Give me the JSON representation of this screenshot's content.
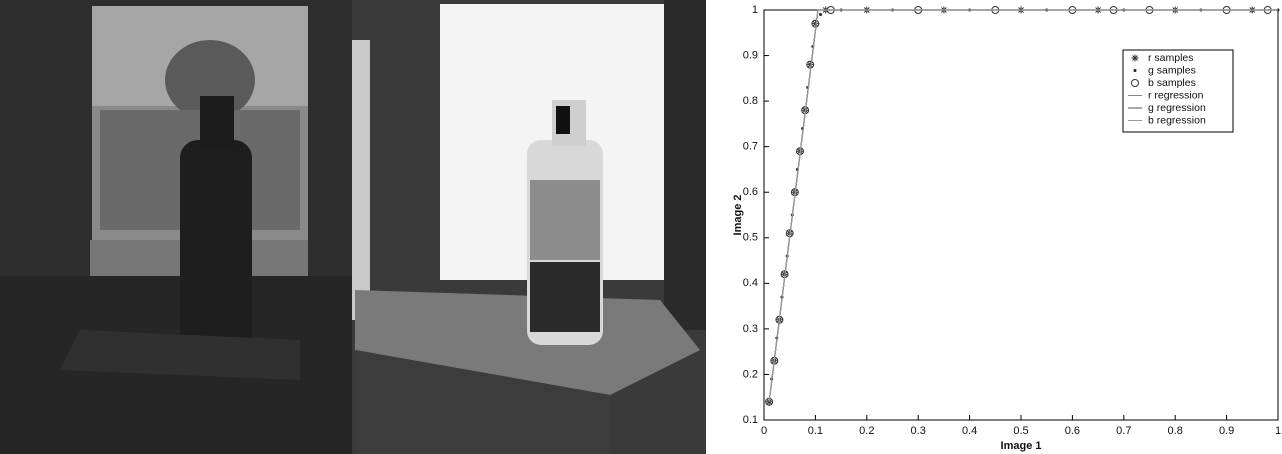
{
  "chart_data": {
    "type": "scatter",
    "xlabel": "Image 1",
    "ylabel": "Image 2",
    "xlim": [
      0,
      1
    ],
    "ylim": [
      0.1,
      1
    ],
    "xticks": [
      0,
      0.1,
      0.2,
      0.3,
      0.4,
      0.5,
      0.6,
      0.7,
      0.8,
      0.9,
      1
    ],
    "yticks": [
      0.1,
      0.2,
      0.3,
      0.4,
      0.5,
      0.6,
      0.7,
      0.8,
      0.9,
      1
    ],
    "legend": "upper right",
    "series": [
      {
        "name": "r samples",
        "marker": "asterisk",
        "color": "#333333",
        "x": [
          0.01,
          0.02,
          0.03,
          0.04,
          0.05,
          0.06,
          0.07,
          0.08,
          0.09,
          0.1,
          0.12,
          0.2,
          0.35,
          0.5,
          0.65,
          0.8,
          0.95
        ],
        "values": [
          0.14,
          0.23,
          0.32,
          0.42,
          0.51,
          0.6,
          0.69,
          0.78,
          0.88,
          0.97,
          1,
          1,
          1,
          1,
          1,
          1,
          1
        ]
      },
      {
        "name": "g samples",
        "marker": "dot",
        "color": "#222222",
        "x": [
          0.015,
          0.025,
          0.035,
          0.045,
          0.055,
          0.065,
          0.075,
          0.085,
          0.095,
          0.11,
          0.15,
          0.25,
          0.4,
          0.55,
          0.7,
          0.85,
          1
        ],
        "values": [
          0.19,
          0.28,
          0.37,
          0.46,
          0.55,
          0.65,
          0.74,
          0.83,
          0.92,
          0.99,
          1,
          1,
          1,
          1,
          1,
          1,
          1
        ]
      },
      {
        "name": "b samples",
        "marker": "circle",
        "color": "#333333",
        "x": [
          0.01,
          0.02,
          0.03,
          0.04,
          0.05,
          0.06,
          0.07,
          0.08,
          0.09,
          0.1,
          0.13,
          0.3,
          0.45,
          0.6,
          0.68,
          0.75,
          0.9,
          0.98
        ],
        "values": [
          0.14,
          0.23,
          0.32,
          0.42,
          0.51,
          0.6,
          0.69,
          0.78,
          0.88,
          0.97,
          1,
          1,
          1,
          1,
          1,
          1,
          1,
          1
        ]
      },
      {
        "name": "r regression",
        "marker": "line",
        "color": "#888888",
        "x": [
          0.01,
          0.105,
          1
        ],
        "values": [
          0.14,
          1,
          1
        ]
      },
      {
        "name": "g regression",
        "marker": "line",
        "color": "#555555",
        "x": [
          0.01,
          0.105,
          1
        ],
        "values": [
          0.14,
          1,
          1
        ]
      },
      {
        "name": "b regression",
        "marker": "line",
        "color": "#999999",
        "x": [
          0.01,
          0.105,
          1
        ],
        "values": [
          0.14,
          1,
          1
        ]
      }
    ]
  }
}
